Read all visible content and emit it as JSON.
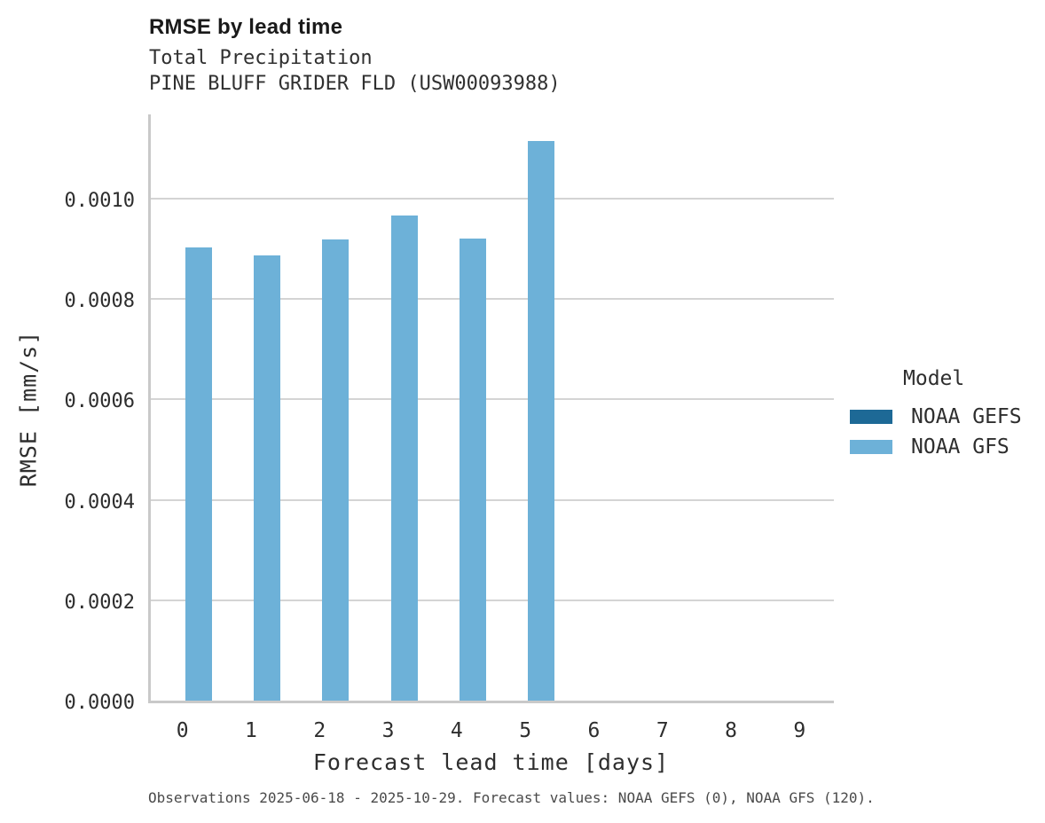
{
  "header": {
    "title": "RMSE by lead time",
    "subtitle_line1": "Total Precipitation",
    "subtitle_line2": "PINE BLUFF GRIDER FLD (USW00093988)"
  },
  "caption": "Observations 2025-06-18 - 2025-10-29. Forecast values: NOAA GEFS (0), NOAA GFS (120).",
  "chart_data": {
    "type": "bar",
    "title": "RMSE by lead time",
    "subtitle": [
      "Total Precipitation",
      "PINE BLUFF GRIDER FLD (USW00093988)"
    ],
    "xlabel": "Forecast lead time [days]",
    "ylabel": "RMSE [mm/s]",
    "categories": [
      "0",
      "1",
      "2",
      "3",
      "4",
      "5",
      "6",
      "7",
      "8",
      "9"
    ],
    "series": [
      {
        "name": "NOAA GEFS",
        "color": "#1d6996",
        "values": [
          null,
          null,
          null,
          null,
          null,
          null,
          null,
          null,
          null,
          null
        ]
      },
      {
        "name": "NOAA GFS",
        "color": "#6db1d8",
        "values": [
          0.000903,
          0.000886,
          0.000919,
          0.000966,
          0.00092,
          0.001114,
          null,
          null,
          null,
          null
        ]
      }
    ],
    "ylim": [
      0,
      0.001173
    ],
    "yticks": [
      0,
      0.0002,
      0.0004,
      0.0006,
      0.0008,
      0.001
    ],
    "ytick_labels": [
      "0.0000",
      "0.0002",
      "0.0004",
      "0.0006",
      "0.0008",
      "0.0010"
    ],
    "legend_title": "Model",
    "legend_position": "right",
    "grid": "horizontal-only",
    "caption": "Observations 2025-06-18 - 2025-10-29. Forecast values: NOAA GEFS (0), NOAA GFS (120)."
  }
}
